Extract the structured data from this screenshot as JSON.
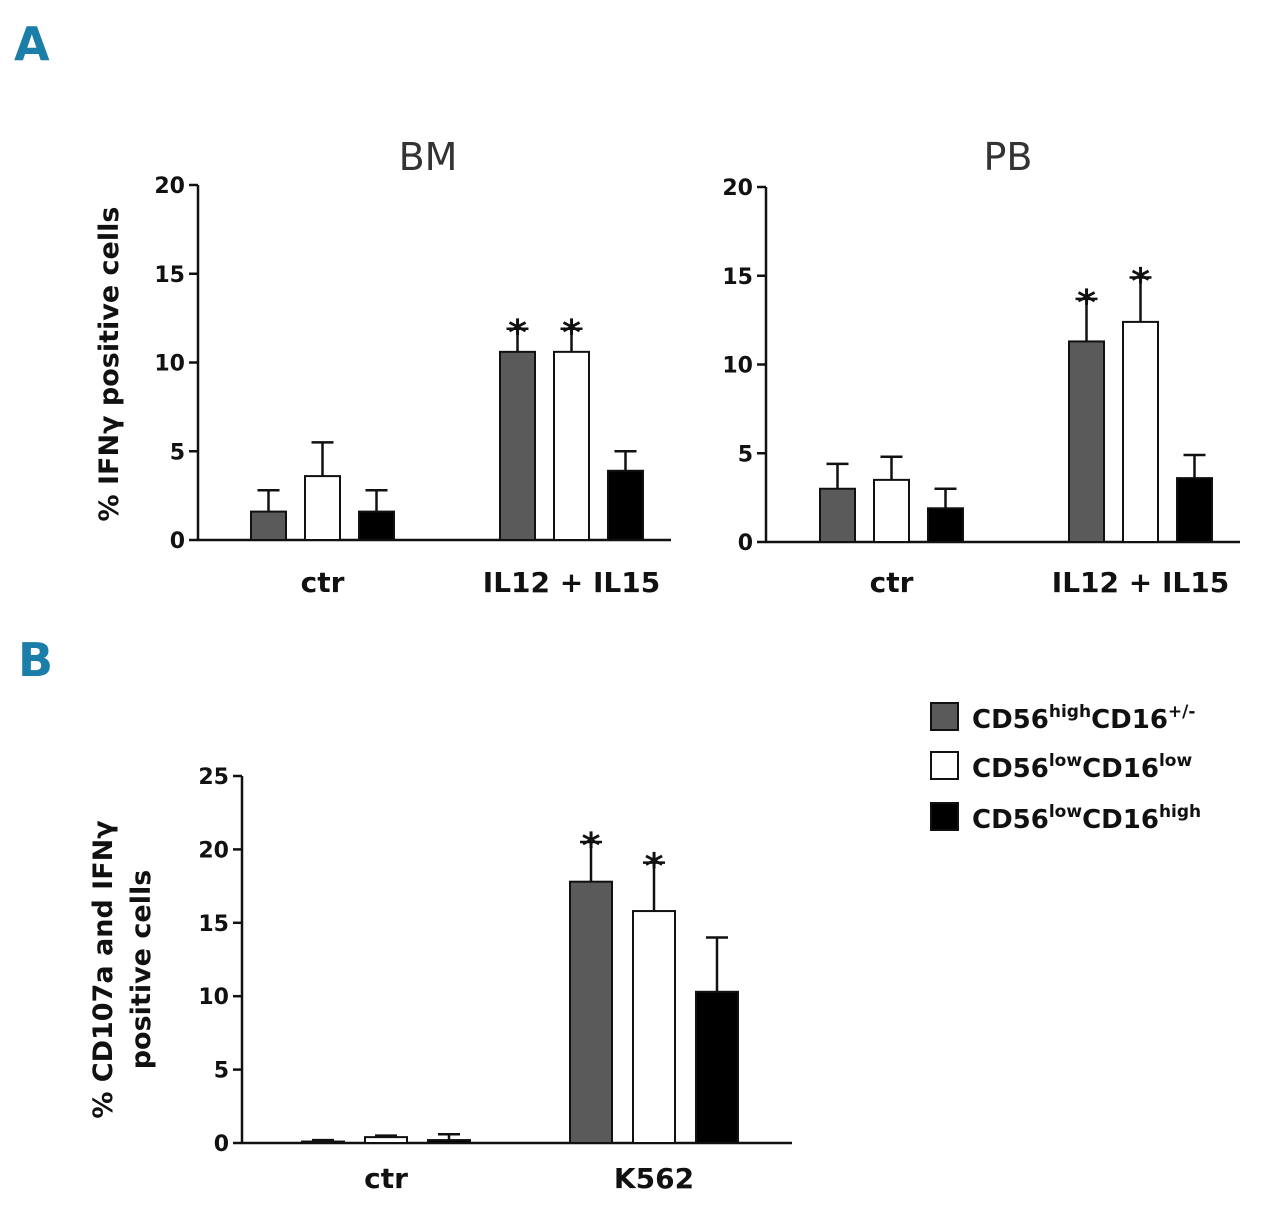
{
  "panels": {
    "a": "A",
    "b": "B"
  },
  "colors": {
    "high": "#5a5a5a",
    "lowlow": "#ffffff",
    "lowhigh": "#000000",
    "axis": "#111111"
  },
  "legend": [
    {
      "key": "high",
      "base1": "CD56",
      "sup1": "high",
      "base2": "CD16",
      "sup2": "+/-"
    },
    {
      "key": "lowlow",
      "base1": "CD56",
      "sup1": "low",
      "base2": "CD16",
      "sup2": "low"
    },
    {
      "key": "lowhigh",
      "base1": "CD56",
      "sup1": "low",
      "base2": "CD16",
      "sup2": "high"
    }
  ],
  "chart_data": [
    {
      "id": "bm",
      "type": "bar",
      "title": "BM",
      "ylabel": "% IFNγ positive cells",
      "ylim": [
        0,
        20
      ],
      "yticks": [
        0,
        5,
        10,
        15,
        20
      ],
      "categories": [
        "ctr",
        "IL12 + IL15"
      ],
      "series": [
        {
          "name": "CD56highCD16+/-",
          "key": "high",
          "values": [
            1.6,
            10.6
          ],
          "errors": [
            1.2,
            1.3
          ],
          "sig": [
            false,
            true
          ]
        },
        {
          "name": "CD56lowCD16low",
          "key": "lowlow",
          "values": [
            3.6,
            10.6
          ],
          "errors": [
            1.9,
            1.3
          ],
          "sig": [
            false,
            true
          ]
        },
        {
          "name": "CD56lowCD16high",
          "key": "lowhigh",
          "values": [
            1.6,
            3.9
          ],
          "errors": [
            1.2,
            1.1
          ],
          "sig": [
            false,
            false
          ]
        }
      ]
    },
    {
      "id": "pb",
      "type": "bar",
      "title": "PB",
      "ylabel": "",
      "ylim": [
        0,
        20
      ],
      "yticks": [
        0,
        5,
        10,
        15,
        20
      ],
      "categories": [
        "ctr",
        "IL12 + IL15"
      ],
      "series": [
        {
          "name": "CD56highCD16+/-",
          "key": "high",
          "values": [
            3.0,
            11.3
          ],
          "errors": [
            1.4,
            2.4
          ],
          "sig": [
            false,
            true
          ]
        },
        {
          "name": "CD56lowCD16low",
          "key": "lowlow",
          "values": [
            3.5,
            12.4
          ],
          "errors": [
            1.3,
            2.5
          ],
          "sig": [
            false,
            true
          ]
        },
        {
          "name": "CD56lowCD16high",
          "key": "lowhigh",
          "values": [
            1.9,
            3.6
          ],
          "errors": [
            1.1,
            1.3
          ],
          "sig": [
            false,
            false
          ]
        }
      ]
    },
    {
      "id": "k562",
      "type": "bar",
      "title": "",
      "ylabel": [
        "% CD107a and IFNγ",
        "positive cells"
      ],
      "ylim": [
        0,
        25
      ],
      "yticks": [
        0,
        5,
        10,
        15,
        20,
        25
      ],
      "categories": [
        "ctr",
        "K562"
      ],
      "series": [
        {
          "name": "CD56highCD16+/-",
          "key": "high",
          "values": [
            0.1,
            17.8
          ],
          "errors": [
            0.1,
            2.7
          ],
          "sig": [
            false,
            true
          ]
        },
        {
          "name": "CD56lowCD16low",
          "key": "lowlow",
          "values": [
            0.4,
            15.8
          ],
          "errors": [
            0.1,
            3.3
          ],
          "sig": [
            false,
            true
          ]
        },
        {
          "name": "CD56lowCD16high",
          "key": "lowhigh",
          "values": [
            0.2,
            10.3
          ],
          "errors": [
            0.4,
            3.7
          ],
          "sig": [
            false,
            false
          ]
        }
      ]
    }
  ]
}
